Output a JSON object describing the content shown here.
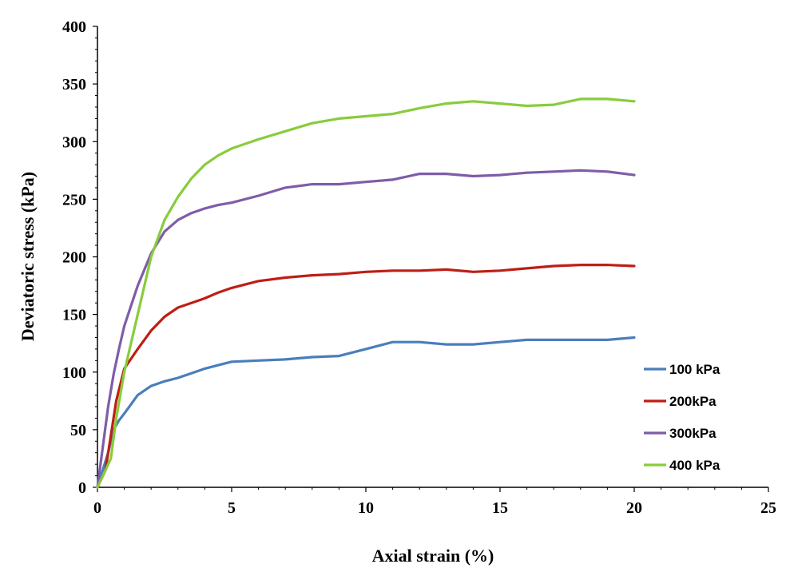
{
  "chart_data": {
    "type": "line",
    "title": "",
    "xlabel": "Axial strain (%)",
    "ylabel": "Deviatoric stress (kPa)",
    "xlim": [
      0,
      25
    ],
    "ylim": [
      0,
      400
    ],
    "xticks": [
      0,
      5,
      10,
      15,
      20,
      25
    ],
    "yticks": [
      0,
      50,
      100,
      150,
      200,
      250,
      300,
      350,
      400
    ],
    "grid": false,
    "legend_position": "right",
    "series": [
      {
        "name": "100 kPa",
        "color": "#4a7ebb",
        "points": [
          [
            0,
            0
          ],
          [
            0.2,
            15
          ],
          [
            0.4,
            30
          ],
          [
            0.6,
            50
          ],
          [
            0.8,
            58
          ],
          [
            1,
            64
          ],
          [
            1.5,
            80
          ],
          [
            2,
            88
          ],
          [
            2.5,
            92
          ],
          [
            3,
            95
          ],
          [
            3.5,
            99
          ],
          [
            4,
            103
          ],
          [
            4.5,
            106
          ],
          [
            5,
            109
          ],
          [
            6,
            110
          ],
          [
            7,
            111
          ],
          [
            8,
            113
          ],
          [
            9,
            114
          ],
          [
            10,
            120
          ],
          [
            11,
            126
          ],
          [
            12,
            126
          ],
          [
            13,
            124
          ],
          [
            14,
            124
          ],
          [
            15,
            126
          ],
          [
            16,
            128
          ],
          [
            17,
            128
          ],
          [
            18,
            128
          ],
          [
            19,
            128
          ],
          [
            20,
            130
          ]
        ]
      },
      {
        "name": "200kPa",
        "color": "#be1e16",
        "points": [
          [
            0,
            0
          ],
          [
            0.3,
            15
          ],
          [
            0.5,
            45
          ],
          [
            0.7,
            75
          ],
          [
            1,
            103
          ],
          [
            1.5,
            120
          ],
          [
            2,
            136
          ],
          [
            2.5,
            148
          ],
          [
            3,
            156
          ],
          [
            3.5,
            160
          ],
          [
            4,
            164
          ],
          [
            4.5,
            169
          ],
          [
            5,
            173
          ],
          [
            6,
            179
          ],
          [
            7,
            182
          ],
          [
            8,
            184
          ],
          [
            9,
            185
          ],
          [
            10,
            187
          ],
          [
            11,
            188
          ],
          [
            12,
            188
          ],
          [
            13,
            189
          ],
          [
            14,
            187
          ],
          [
            15,
            188
          ],
          [
            16,
            190
          ],
          [
            17,
            192
          ],
          [
            18,
            193
          ],
          [
            19,
            193
          ],
          [
            20,
            192
          ]
        ]
      },
      {
        "name": "300kPa",
        "color": "#7e5da8",
        "points": [
          [
            0,
            0
          ],
          [
            0.2,
            35
          ],
          [
            0.4,
            70
          ],
          [
            0.6,
            98
          ],
          [
            0.8,
            120
          ],
          [
            1,
            140
          ],
          [
            1.5,
            175
          ],
          [
            2,
            203
          ],
          [
            2.5,
            222
          ],
          [
            3,
            232
          ],
          [
            3.5,
            238
          ],
          [
            4,
            242
          ],
          [
            4.5,
            245
          ],
          [
            5,
            247
          ],
          [
            6,
            253
          ],
          [
            7,
            260
          ],
          [
            8,
            263
          ],
          [
            9,
            263
          ],
          [
            10,
            265
          ],
          [
            11,
            267
          ],
          [
            12,
            272
          ],
          [
            13,
            272
          ],
          [
            14,
            270
          ],
          [
            15,
            271
          ],
          [
            16,
            273
          ],
          [
            17,
            274
          ],
          [
            18,
            275
          ],
          [
            19,
            274
          ],
          [
            20,
            271
          ]
        ]
      },
      {
        "name": "400 kPa",
        "color": "#88cc3c",
        "points": [
          [
            0,
            0
          ],
          [
            0.3,
            15
          ],
          [
            0.5,
            25
          ],
          [
            0.7,
            60
          ],
          [
            1,
            100
          ],
          [
            1.5,
            150
          ],
          [
            2,
            200
          ],
          [
            2.5,
            232
          ],
          [
            3,
            252
          ],
          [
            3.5,
            268
          ],
          [
            4,
            280
          ],
          [
            4.5,
            288
          ],
          [
            5,
            294
          ],
          [
            6,
            302
          ],
          [
            7,
            309
          ],
          [
            8,
            316
          ],
          [
            9,
            320
          ],
          [
            10,
            322
          ],
          [
            11,
            324
          ],
          [
            12,
            329
          ],
          [
            13,
            333
          ],
          [
            14,
            335
          ],
          [
            15,
            333
          ],
          [
            16,
            331
          ],
          [
            17,
            332
          ],
          [
            18,
            337
          ],
          [
            19,
            337
          ],
          [
            20,
            335
          ]
        ]
      }
    ]
  }
}
